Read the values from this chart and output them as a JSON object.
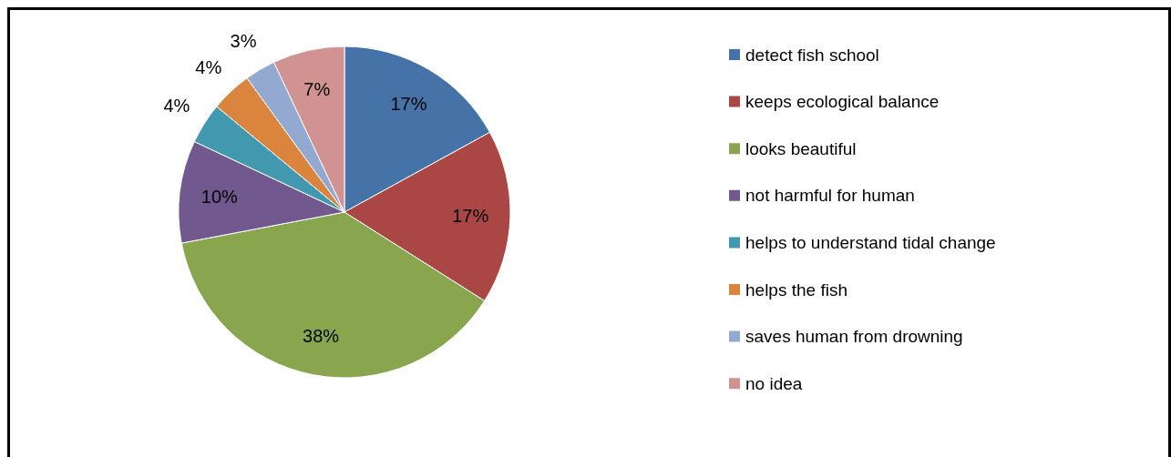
{
  "chart_data": {
    "type": "pie",
    "categories": [
      "detect fish school",
      "keeps ecological balance",
      "looks beautiful",
      "not harmful for human",
      "helps to understand tidal change",
      "helps the fish",
      "saves human from drowning",
      "no idea"
    ],
    "values": [
      17,
      17,
      38,
      10,
      4,
      4,
      3,
      7
    ],
    "colors": [
      "#4572a7",
      "#aa4643",
      "#89a54e",
      "#71588f",
      "#4198af",
      "#db843d",
      "#93a9cf",
      "#d19392"
    ],
    "value_labels": [
      "17%",
      "17%",
      "38%",
      "10%",
      "4%",
      "4%",
      "3%",
      "7%"
    ],
    "legend": "right"
  }
}
